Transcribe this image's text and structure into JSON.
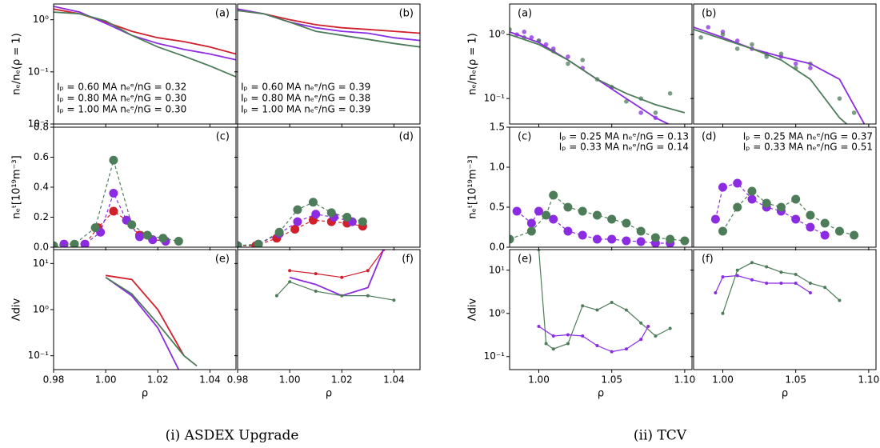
{
  "captions": [
    "(i) ASDEX Upgrade",
    "(ii) TCV"
  ],
  "chart_data": [
    {
      "type": "line",
      "label": "(a)",
      "ylabel": "nₑ/nₑ(ρ = 1)",
      "log_y": true,
      "ylim": [
        0.01,
        2
      ],
      "yticks": [
        {
          "value": 0.01,
          "label": "10⁻²"
        },
        {
          "value": 0.1,
          "label": "10⁻¹"
        },
        {
          "value": 1,
          "label": "10⁰"
        }
      ],
      "legend": "lower left",
      "series": [
        {
          "name": "Iₚ = 0.60 MA nₑᵉ/nG = 0.32",
          "color": "#d11f2b",
          "style": "line",
          "x": [
            0.98,
            0.99,
            1.0,
            1.01,
            1.02,
            1.03,
            1.04,
            1.05
          ],
          "values": [
            1.6,
            1.3,
            0.9,
            0.6,
            0.45,
            0.38,
            0.3,
            0.22
          ]
        },
        {
          "name": "Iₚ = 0.80 MA nₑᵉ/nG = 0.30",
          "color": "#8b2be2",
          "style": "line",
          "x": [
            0.98,
            0.99,
            1.0,
            1.01,
            1.02,
            1.03,
            1.04,
            1.05
          ],
          "values": [
            1.8,
            1.4,
            0.85,
            0.5,
            0.35,
            0.27,
            0.22,
            0.17
          ]
        },
        {
          "name": "Iₚ = 1.00 MA nₑᵉ/nG = 0.30",
          "color": "#4d7c59",
          "style": "line",
          "x": [
            0.98,
            0.99,
            1.0,
            1.01,
            1.02,
            1.03,
            1.04,
            1.05
          ],
          "values": [
            1.4,
            1.3,
            0.95,
            0.5,
            0.3,
            0.2,
            0.13,
            0.08
          ]
        }
      ]
    },
    {
      "type": "line",
      "label": "(b)",
      "legend": "lower left",
      "series": [
        {
          "name": "Iₚ = 0.60 MA nₑᵉ/nG = 0.39",
          "color": "#d11f2b",
          "style": "line",
          "x": [
            0.98,
            0.99,
            1.0,
            1.01,
            1.02,
            1.03,
            1.04,
            1.05
          ],
          "values": [
            1.5,
            1.3,
            1.0,
            0.8,
            0.7,
            0.65,
            0.6,
            0.55
          ]
        },
        {
          "name": "Iₚ = 0.80 MA nₑᵉ/nG = 0.38",
          "color": "#8b2be2",
          "style": "line",
          "x": [
            0.98,
            0.99,
            1.0,
            1.01,
            1.02,
            1.03,
            1.04,
            1.05
          ],
          "values": [
            1.6,
            1.3,
            0.9,
            0.7,
            0.6,
            0.55,
            0.45,
            0.4
          ]
        },
        {
          "name": "Iₚ = 1.00 MA nₑᵉ/nG = 0.39",
          "color": "#4d7c59",
          "style": "line",
          "x": [
            0.98,
            0.99,
            1.0,
            1.01,
            1.02,
            1.03,
            1.04,
            1.05
          ],
          "values": [
            1.5,
            1.3,
            0.9,
            0.6,
            0.5,
            0.42,
            0.35,
            0.3
          ]
        }
      ]
    },
    {
      "type": "line",
      "label": "(c)",
      "ylabel": "nₑᵗ[10¹⁹m⁻³]",
      "ylim": [
        0,
        0.8
      ],
      "yticks": [
        {
          "value": 0,
          "label": "0.0"
        },
        0.2,
        0.4,
        0.6,
        0.8
      ],
      "series": [
        {
          "color": "#d11f2b",
          "style": "dashed-markers",
          "x": [
            0.984,
            0.992,
            0.997,
            1.003,
            1.008,
            1.013,
            1.018,
            1.023
          ],
          "values": [
            0.02,
            0.02,
            0.13,
            0.24,
            0.18,
            0.08,
            0.05,
            0.04
          ]
        },
        {
          "color": "#8b2be2",
          "style": "dashed-markers",
          "x": [
            0.984,
            0.992,
            0.998,
            1.003,
            1.008,
            1.013,
            1.018,
            1.023
          ],
          "values": [
            0.02,
            0.02,
            0.1,
            0.36,
            0.18,
            0.07,
            0.05,
            0.04
          ]
        },
        {
          "color": "#4d7c59",
          "style": "dashed-markers",
          "x": [
            0.98,
            0.988,
            0.996,
            1.003,
            1.01,
            1.016,
            1.022,
            1.028
          ],
          "values": [
            0.01,
            0.02,
            0.13,
            0.58,
            0.15,
            0.08,
            0.06,
            0.04
          ]
        }
      ]
    },
    {
      "type": "line",
      "label": "(d)",
      "series": [
        {
          "color": "#d11f2b",
          "style": "dashed-markers",
          "x": [
            0.98,
            0.987,
            0.995,
            1.002,
            1.009,
            1.016,
            1.022,
            1.028
          ],
          "values": [
            0.01,
            0.01,
            0.06,
            0.12,
            0.18,
            0.17,
            0.16,
            0.14
          ]
        },
        {
          "color": "#8b2be2",
          "style": "dashed-markers",
          "x": [
            0.98,
            0.988,
            0.996,
            1.003,
            1.01,
            1.017,
            1.024
          ],
          "values": [
            0.01,
            0.02,
            0.09,
            0.17,
            0.22,
            0.2,
            0.17
          ]
        },
        {
          "color": "#4d7c59",
          "style": "dashed-markers",
          "x": [
            0.98,
            0.988,
            0.996,
            1.003,
            1.009,
            1.016,
            1.022,
            1.028
          ],
          "values": [
            0.01,
            0.02,
            0.1,
            0.25,
            0.3,
            0.23,
            0.2,
            0.17
          ]
        }
      ]
    },
    {
      "type": "line",
      "label": "(e)",
      "ylabel": "Λdiv",
      "xlabel": "ρ",
      "log_y": true,
      "ylim": [
        0.05,
        20
      ],
      "yticks": [
        {
          "value": 0.1,
          "label": "10⁻¹"
        },
        {
          "value": 1,
          "label": "10⁰"
        },
        {
          "value": 10,
          "label": "10¹"
        }
      ],
      "xlim": [
        0.98,
        1.05
      ],
      "xticks": [
        0.98,
        {
          "value": 1,
          "label": "1.00"
        },
        1.02,
        1.04
      ],
      "series": [
        {
          "color": "#d11f2b",
          "style": "line",
          "x": [
            1.0,
            1.01,
            1.02,
            1.03
          ],
          "values": [
            5.5,
            4.5,
            1.0,
            0.1
          ]
        },
        {
          "color": "#8b2be2",
          "style": "line",
          "x": [
            1.0,
            1.01,
            1.02,
            1.028
          ],
          "values": [
            5,
            2,
            0.4,
            0.05
          ]
        },
        {
          "color": "#4d7c59",
          "style": "line",
          "x": [
            1.0,
            1.01,
            1.02,
            1.03,
            1.035
          ],
          "values": [
            5,
            2.2,
            0.5,
            0.1,
            0.06
          ]
        }
      ]
    },
    {
      "type": "line",
      "label": "(f)",
      "xlabel": "ρ",
      "xlim": [
        0.98,
        1.05
      ],
      "xticks": [
        0.98,
        {
          "value": 1,
          "label": "1.00"
        },
        1.02,
        1.04
      ],
      "series": [
        {
          "color": "#d11f2b",
          "style": "line-markers",
          "x": [
            1.0,
            1.01,
            1.02,
            1.03,
            1.036
          ],
          "values": [
            7,
            6,
            5,
            7,
            20
          ]
        },
        {
          "color": "#8b2be2",
          "style": "line",
          "x": [
            1.0,
            1.01,
            1.02,
            1.03,
            1.036
          ],
          "values": [
            5,
            3.5,
            2,
            3,
            20
          ]
        },
        {
          "color": "#4d7c59",
          "style": "line-markers",
          "x": [
            0.995,
            1.0,
            1.01,
            1.02,
            1.03,
            1.04
          ],
          "values": [
            2,
            4,
            2.5,
            2,
            2,
            1.6
          ]
        }
      ]
    },
    {
      "type": "line",
      "label": "(a)",
      "ylabel": "nₑ/nₑ(ρ = 1)",
      "log_y": true,
      "ylim": [
        0.04,
        3
      ],
      "yticks": [
        {
          "value": 0.1,
          "label": "10⁻¹"
        },
        {
          "value": 1,
          "label": "10⁰"
        }
      ],
      "series": [
        {
          "color": "#8b2be2",
          "style": "points",
          "x": [
            0.985,
            0.99,
            0.995,
            1.0,
            1.005,
            1.01,
            1.02,
            1.03,
            1.05,
            1.07,
            1.08
          ],
          "values": [
            1.0,
            1.1,
            0.9,
            0.8,
            0.7,
            0.6,
            0.45,
            0.3,
            0.15,
            0.06,
            0.05
          ]
        },
        {
          "color": "#4d7c59",
          "style": "points",
          "x": [
            0.98,
            0.99,
            1.0,
            1.01,
            1.02,
            1.03,
            1.04,
            1.05,
            1.06,
            1.07,
            1.08,
            1.09
          ],
          "values": [
            1.2,
            0.9,
            0.8,
            0.55,
            0.35,
            0.4,
            0.2,
            0.15,
            0.09,
            0.1,
            0.06,
            0.12
          ]
        },
        {
          "color": "#8b2be2",
          "style": "line",
          "x": [
            0.98,
            1.0,
            1.02,
            1.04,
            1.06,
            1.08,
            1.1
          ],
          "values": [
            1.1,
            0.75,
            0.4,
            0.2,
            0.1,
            0.05,
            0.03
          ]
        },
        {
          "color": "#4d7c59",
          "style": "line",
          "x": [
            0.98,
            1.0,
            1.02,
            1.04,
            1.06,
            1.08,
            1.1
          ],
          "values": [
            1.0,
            0.7,
            0.4,
            0.2,
            0.12,
            0.08,
            0.06
          ]
        }
      ]
    },
    {
      "type": "line",
      "label": "(b)",
      "series": [
        {
          "color": "#8b2be2",
          "style": "points",
          "x": [
            0.99,
            1.0,
            1.01,
            1.02,
            1.03,
            1.04,
            1.05,
            1.06
          ],
          "values": [
            1.3,
            1.1,
            0.8,
            0.6,
            0.5,
            0.45,
            0.35,
            0.3
          ]
        },
        {
          "color": "#4d7c59",
          "style": "points",
          "x": [
            0.985,
            1.0,
            1.01,
            1.02,
            1.03,
            1.04,
            1.05,
            1.06,
            1.08,
            1.09
          ],
          "values": [
            0.9,
            1.0,
            0.6,
            0.7,
            0.45,
            0.5,
            0.3,
            0.35,
            0.1,
            0.06
          ]
        },
        {
          "color": "#8b2be2",
          "style": "line",
          "x": [
            0.98,
            1.0,
            1.02,
            1.04,
            1.06,
            1.08,
            1.1
          ],
          "values": [
            1.3,
            0.9,
            0.6,
            0.45,
            0.35,
            0.2,
            0.03
          ]
        },
        {
          "color": "#4d7c59",
          "style": "line",
          "x": [
            0.98,
            1.0,
            1.02,
            1.04,
            1.06,
            1.08,
            1.1
          ],
          "values": [
            1.2,
            0.85,
            0.6,
            0.4,
            0.2,
            0.05,
            0.02
          ]
        }
      ]
    },
    {
      "type": "line",
      "label": "(c)",
      "ylabel": "nₑᵗ[10¹⁹m⁻³]",
      "ylim": [
        0,
        1.5
      ],
      "yticks": [
        {
          "value": 0,
          "label": "0.0"
        },
        0.5,
        {
          "value": 1,
          "label": "1.0"
        },
        1.5
      ],
      "legend": "upper right",
      "series": [
        {
          "name": "Iₚ = 0.25 MA nₑᵉ/nG = 0.13",
          "color": "#8b2be2",
          "style": "dashed-markers",
          "x": [
            0.985,
            0.995,
            1.0,
            1.01,
            1.02,
            1.03,
            1.04,
            1.05,
            1.06,
            1.07,
            1.08,
            1.09
          ],
          "values": [
            0.45,
            0.3,
            0.45,
            0.35,
            0.2,
            0.15,
            0.1,
            0.1,
            0.08,
            0.07,
            0.05,
            0.05
          ]
        },
        {
          "name": "Iₚ = 0.33 MA nₑᵉ/nG = 0.14",
          "color": "#4d7c59",
          "style": "dashed-markers",
          "x": [
            0.98,
            0.995,
            1.005,
            1.01,
            1.02,
            1.03,
            1.04,
            1.05,
            1.06,
            1.07,
            1.08,
            1.09,
            1.1
          ],
          "values": [
            0.1,
            0.2,
            0.4,
            0.65,
            0.5,
            0.45,
            0.4,
            0.35,
            0.3,
            0.2,
            0.12,
            0.1,
            0.08
          ]
        }
      ]
    },
    {
      "type": "line",
      "label": "(d)",
      "legend": "upper right",
      "series": [
        {
          "name": "Iₚ = 0.25 MA nₑᵉ/nG = 0.37",
          "color": "#8b2be2",
          "style": "dashed-markers",
          "x": [
            0.995,
            1.0,
            1.01,
            1.02,
            1.03,
            1.04,
            1.05,
            1.06,
            1.07
          ],
          "values": [
            0.35,
            0.75,
            0.8,
            0.6,
            0.5,
            0.45,
            0.35,
            0.25,
            0.15
          ]
        },
        {
          "name": "Iₚ = 0.33 MA nₑᵉ/nG = 0.51",
          "color": "#4d7c59",
          "style": "dashed-markers",
          "x": [
            1.0,
            1.01,
            1.02,
            1.03,
            1.04,
            1.05,
            1.06,
            1.07,
            1.08,
            1.09
          ],
          "values": [
            0.2,
            0.5,
            0.7,
            0.55,
            0.5,
            0.6,
            0.4,
            0.3,
            0.2,
            0.15
          ]
        }
      ]
    },
    {
      "type": "line",
      "label": "(e)",
      "ylabel": "Λdiv",
      "xlabel": "ρ",
      "log_y": true,
      "ylim": [
        0.05,
        30
      ],
      "yticks": [
        {
          "value": 0.1,
          "label": "10⁻¹"
        },
        {
          "value": 1,
          "label": "10⁰"
        },
        {
          "value": 10,
          "label": "10¹"
        }
      ],
      "xlim": [
        0.98,
        1.105
      ],
      "xticks": [
        {
          "value": 1,
          "label": "1.00"
        },
        1.05,
        {
          "value": 1.1,
          "label": "1.10"
        }
      ],
      "series": [
        {
          "color": "#4d7c59",
          "style": "line-markers",
          "x": [
            1.0,
            1.005,
            1.01,
            1.02,
            1.03,
            1.04,
            1.05,
            1.06,
            1.07,
            1.08,
            1.09
          ],
          "values": [
            30,
            0.2,
            0.15,
            0.2,
            1.5,
            1.2,
            1.8,
            1.2,
            0.6,
            0.3,
            0.45
          ]
        },
        {
          "color": "#8b2be2",
          "style": "line-markers",
          "x": [
            1.0,
            1.01,
            1.02,
            1.03,
            1.04,
            1.05,
            1.06,
            1.07,
            1.075
          ],
          "values": [
            0.5,
            0.3,
            0.32,
            0.3,
            0.18,
            0.13,
            0.15,
            0.25,
            0.5
          ]
        }
      ]
    },
    {
      "type": "line",
      "label": "(f)",
      "xlabel": "ρ",
      "xlim": [
        0.98,
        1.105
      ],
      "xticks": [
        {
          "value": 1,
          "label": "1.00"
        },
        1.05,
        {
          "value": 1.1,
          "label": "1.10"
        }
      ],
      "series": [
        {
          "color": "#8b2be2",
          "style": "line-markers",
          "x": [
            0.995,
            1.0,
            1.01,
            1.02,
            1.03,
            1.04,
            1.05,
            1.06
          ],
          "values": [
            3,
            7,
            7.5,
            6,
            5,
            5,
            5,
            3
          ]
        },
        {
          "color": "#4d7c59",
          "style": "line-markers",
          "x": [
            1.0,
            1.01,
            1.02,
            1.03,
            1.04,
            1.05,
            1.06,
            1.07,
            1.08
          ],
          "values": [
            1,
            10,
            15,
            12,
            9,
            8,
            5,
            4,
            2
          ]
        }
      ]
    }
  ]
}
